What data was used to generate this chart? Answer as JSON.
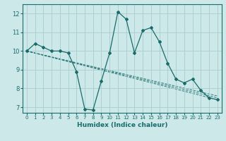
{
  "xlabel": "Humidex (Indice chaleur)",
  "bg_color": "#cce8e8",
  "grid_color": "#aacccc",
  "line_color": "#1a6b6b",
  "xlim": [
    -0.5,
    23.5
  ],
  "ylim": [
    6.7,
    12.5
  ],
  "yticks": [
    7,
    8,
    9,
    10,
    11,
    12
  ],
  "xticks": [
    0,
    1,
    2,
    3,
    4,
    5,
    6,
    7,
    8,
    9,
    10,
    11,
    12,
    13,
    14,
    15,
    16,
    17,
    18,
    19,
    20,
    21,
    22,
    23
  ],
  "main_line": {
    "x": [
      0,
      1,
      2,
      3,
      4,
      5,
      6,
      7,
      8,
      9,
      10,
      11,
      12,
      13,
      14,
      15,
      16,
      17,
      18,
      19,
      20,
      21,
      22,
      23
    ],
    "y": [
      10.0,
      10.4,
      10.2,
      10.0,
      10.0,
      9.9,
      8.9,
      6.9,
      6.85,
      8.4,
      9.9,
      12.1,
      11.7,
      9.9,
      11.1,
      11.25,
      10.5,
      9.35,
      8.5,
      8.3,
      8.5,
      7.9,
      7.5,
      7.4
    ]
  },
  "dashed_lines": [
    {
      "x": [
        0,
        23
      ],
      "y": [
        10.0,
        7.4
      ]
    },
    {
      "x": [
        0,
        23
      ],
      "y": [
        10.0,
        7.35
      ]
    },
    {
      "x": [
        0,
        23
      ],
      "y": [
        10.0,
        7.4
      ]
    }
  ]
}
